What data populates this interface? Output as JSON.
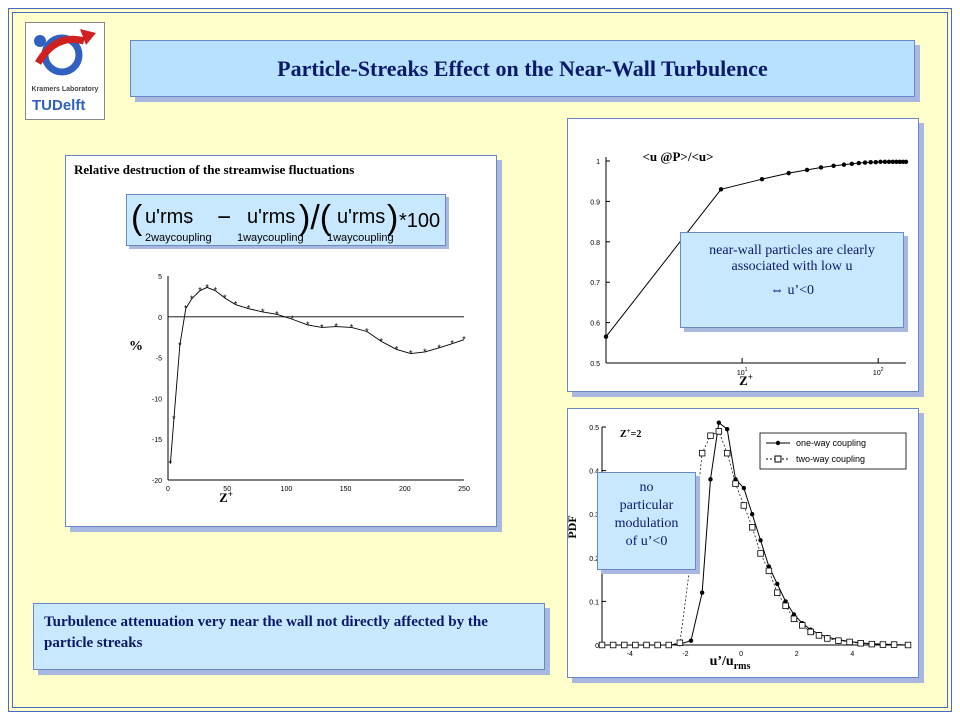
{
  "slide": {
    "title": "Particle-Streaks Effect on the Near-Wall Turbulence",
    "logo": {
      "lab_text": "Kramers Laboratory",
      "university": "TUDelft"
    },
    "conclusion": "Turbulence attenuation very near the wall not directly affected by the particle streaks"
  },
  "left_panel": {
    "title": "Relative destruction of the streamwise fluctuations",
    "formula": {
      "term": "u'rms",
      "sub1": "2waycoupling",
      "sub2": "1waycoupling",
      "sub3": "1waycoupling",
      "factor": "*100"
    },
    "ylabel": "%",
    "xlabel": "Z+"
  },
  "top_right_panel": {
    "title": "<u @P>/<u>",
    "xlabel": "Z+",
    "note": [
      "near-wall particles are clearly",
      "associated with low u",
      "⇔ u’<0"
    ]
  },
  "bottom_right_panel": {
    "annotation": "Z+=2",
    "ylabel": "PDF",
    "xlabel": "u’/u rms",
    "note": [
      "no",
      "particular",
      "modulation",
      "of u’<0"
    ],
    "legend": [
      "one-way coupling",
      "two-way coupling"
    ]
  },
  "chart_data": [
    {
      "type": "line",
      "title": "Relative destruction of the streamwise fluctuations",
      "xlabel": "Z+",
      "ylabel": "%",
      "xlim": [
        0,
        250
      ],
      "ylim": [
        -20,
        5
      ],
      "xticks": [
        0,
        50,
        100,
        150,
        200,
        250
      ],
      "yticks": [
        5,
        0,
        -5,
        -10,
        -15,
        -20
      ],
      "series": [
        {
          "x": [
            2,
            5,
            10,
            15,
            20,
            27,
            33,
            40,
            48,
            57,
            68,
            80,
            92,
            105,
            118,
            130,
            142,
            155,
            168,
            180,
            193,
            205,
            217,
            229,
            240,
            250
          ],
          "y": [
            -18,
            -12.5,
            -3.5,
            1,
            2.2,
            3.2,
            3.6,
            3.2,
            2.3,
            1.5,
            1.0,
            0.6,
            0.3,
            -0.3,
            -1.0,
            -1.3,
            -1.2,
            -1.3,
            -1.8,
            -3.0,
            -4.0,
            -4.5,
            -4.3,
            -3.8,
            -3.3,
            -2.8
          ]
        }
      ]
    },
    {
      "type": "line",
      "title": "<u @P>/<u>",
      "xlabel": "Z+",
      "xscale": "log",
      "xlim": [
        1,
        160
      ],
      "ylim": [
        0.5,
        1.0
      ],
      "xticks": [
        "10^1",
        "10^2"
      ],
      "yticks": [
        1,
        0.9,
        0.8,
        0.7,
        0.6,
        0.5
      ],
      "series": [
        {
          "x": [
            1,
            7,
            14,
            22,
            30,
            38,
            47,
            56,
            64,
            72,
            80,
            88,
            96,
            104,
            112,
            120,
            128,
            136,
            144,
            152,
            160
          ],
          "y": [
            0.565,
            0.93,
            0.955,
            0.97,
            0.978,
            0.984,
            0.988,
            0.991,
            0.993,
            0.995,
            0.996,
            0.997,
            0.997,
            0.998,
            0.998,
            0.998,
            0.998,
            0.998,
            0.998,
            0.998,
            0.998
          ]
        }
      ]
    },
    {
      "type": "line",
      "title": "Z+=2",
      "xlabel": "u’/u rms",
      "ylabel": "PDF",
      "xlim": [
        -5,
        6
      ],
      "ylim": [
        0,
        0.5
      ],
      "xticks": [
        -4,
        -2,
        0,
        2,
        4
      ],
      "yticks": [
        0.5,
        0.4,
        0.3,
        0.2,
        0.1,
        0
      ],
      "legend": "top-right",
      "series": [
        {
          "name": "one-way coupling",
          "x": [
            -5,
            -4.6,
            -4.2,
            -3.8,
            -3.4,
            -3.0,
            -2.6,
            -2.2,
            -1.8,
            -1.4,
            -1.1,
            -0.8,
            -0.5,
            -0.2,
            0.1,
            0.4,
            0.7,
            1.0,
            1.3,
            1.6,
            1.9,
            2.2,
            2.5,
            2.8,
            3.1,
            3.5,
            3.9,
            4.3,
            4.7,
            5.1,
            5.5,
            6.0
          ],
          "y": [
            0,
            0,
            0,
            0,
            0,
            0,
            0,
            0.002,
            0.01,
            0.12,
            0.38,
            0.51,
            0.495,
            0.38,
            0.36,
            0.3,
            0.24,
            0.18,
            0.14,
            0.1,
            0.07,
            0.05,
            0.035,
            0.025,
            0.018,
            0.012,
            0.008,
            0.005,
            0.003,
            0.002,
            0.001,
            0
          ]
        },
        {
          "name": "two-way coupling",
          "x": [
            -5,
            -4.6,
            -4.2,
            -3.8,
            -3.4,
            -3.0,
            -2.6,
            -2.2,
            -1.8,
            -1.4,
            -1.1,
            -0.8,
            -0.5,
            -0.2,
            0.1,
            0.4,
            0.7,
            1.0,
            1.3,
            1.6,
            1.9,
            2.2,
            2.5,
            2.8,
            3.1,
            3.5,
            3.9,
            4.3,
            4.7,
            5.1,
            5.5,
            6.0
          ],
          "y": [
            0,
            0,
            0,
            0,
            0,
            0,
            0,
            0.005,
            0.2,
            0.44,
            0.48,
            0.49,
            0.44,
            0.37,
            0.32,
            0.27,
            0.21,
            0.17,
            0.12,
            0.09,
            0.06,
            0.045,
            0.03,
            0.022,
            0.015,
            0.01,
            0.007,
            0.004,
            0.002,
            0.001,
            0.001,
            0
          ]
        }
      ]
    }
  ]
}
